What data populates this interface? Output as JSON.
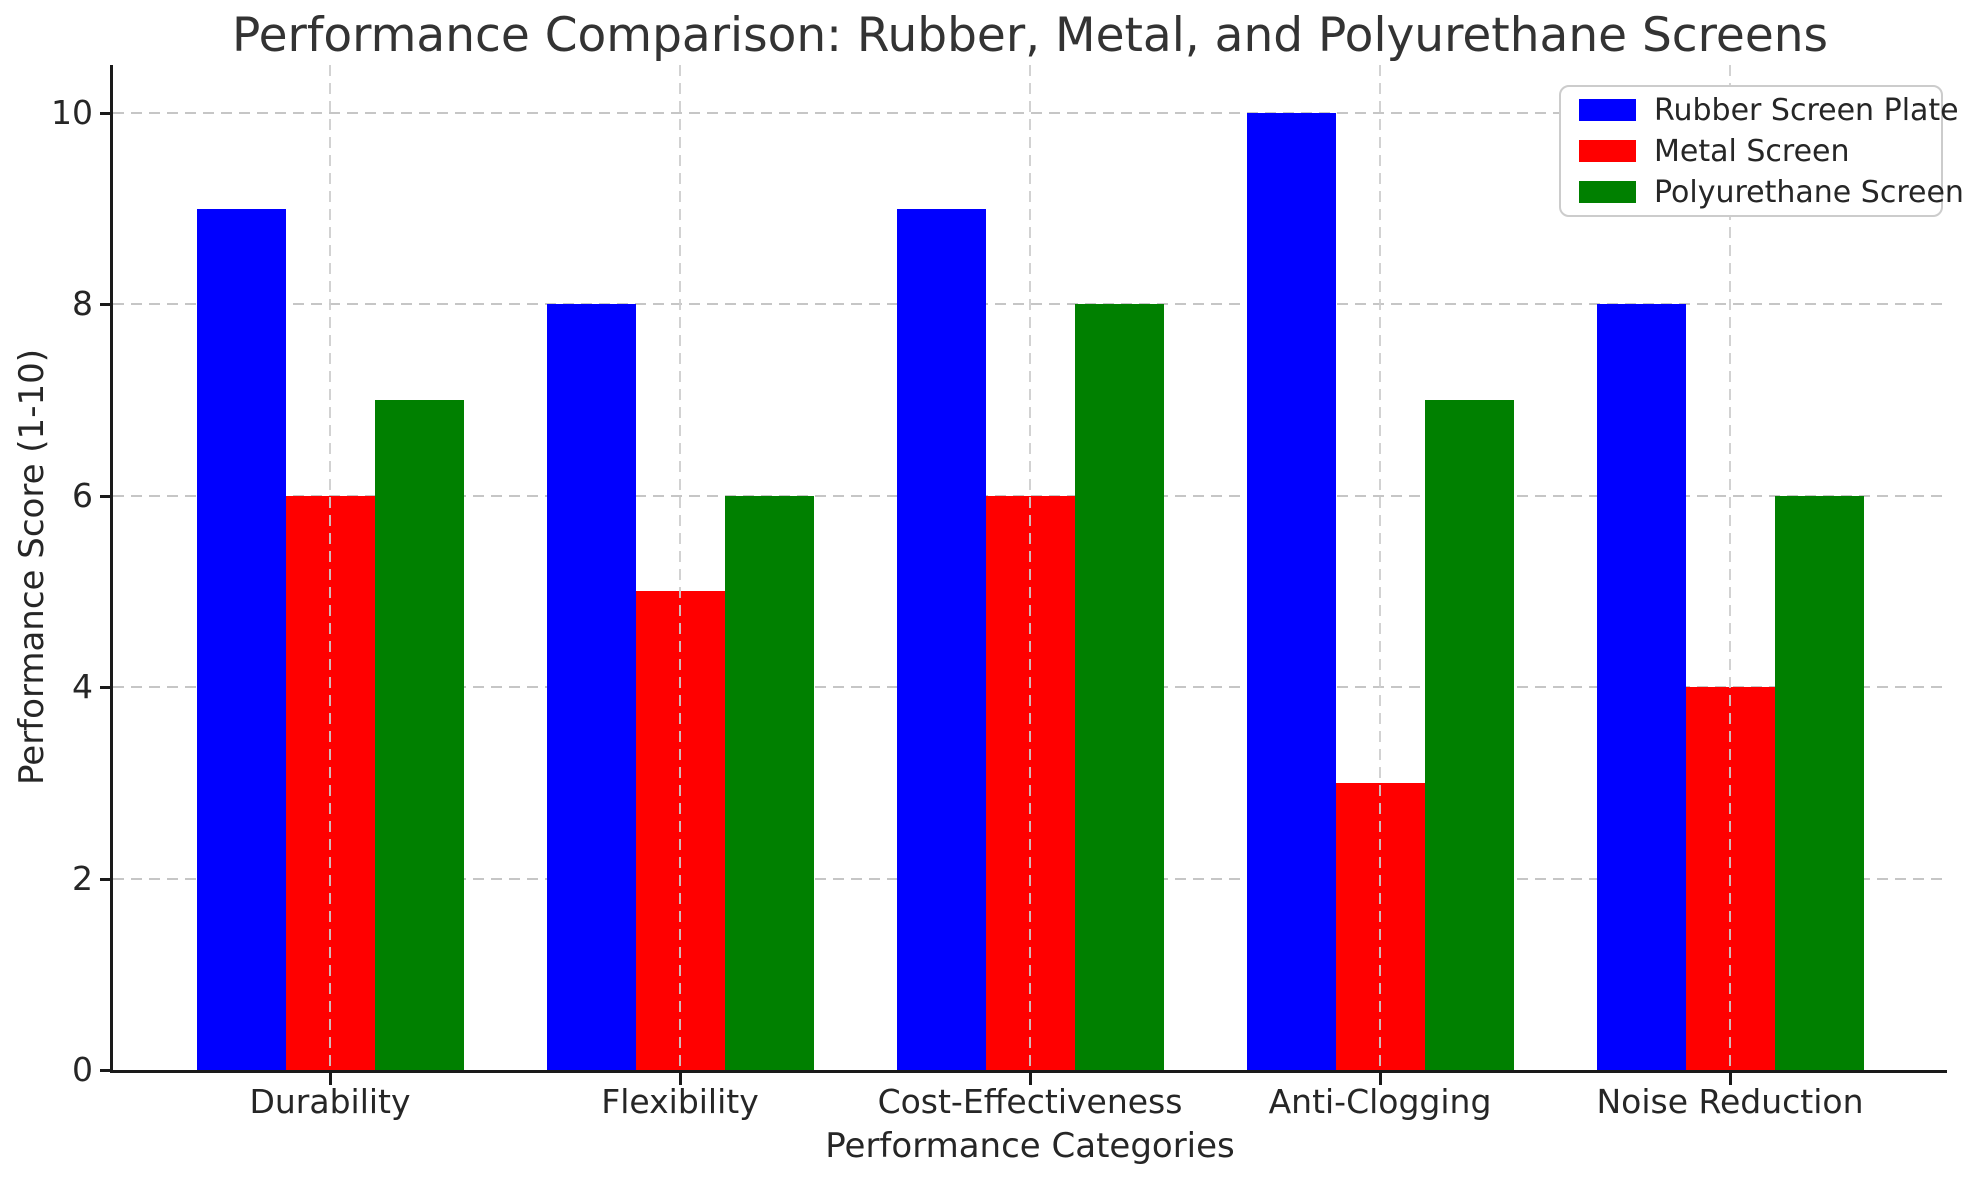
{
  "chart_data": {
    "type": "bar",
    "title": "Performance Comparison: Rubber, Metal, and Polyurethane Screens",
    "xlabel": "Performance Categories",
    "ylabel": "Performance Score (1-10)",
    "categories": [
      "Durability",
      "Flexibility",
      "Cost-Effectiveness",
      "Anti-Clogging",
      "Noise Reduction"
    ],
    "series": [
      {
        "name": "Rubber Screen Plate",
        "color": "#0000ff",
        "values": [
          9,
          8,
          9,
          10,
          8
        ]
      },
      {
        "name": "Metal Screen",
        "color": "#ff0000",
        "values": [
          6,
          5,
          6,
          3,
          4
        ]
      },
      {
        "name": "Polyurethane Screen",
        "color": "#008000",
        "values": [
          7,
          6,
          8,
          7,
          6
        ]
      }
    ],
    "ylim": [
      0,
      10.5
    ],
    "yticks": [
      0,
      2,
      4,
      6,
      8,
      10
    ],
    "grid": true,
    "grid_style": "dashed",
    "legend_position": "upper right",
    "colors": {
      "grid": "#c6c6c6",
      "spine": "#1a1a1a",
      "text": "#262626",
      "title_text": "#333333",
      "legend_border": "#cccccc",
      "background": "#ffffff"
    }
  }
}
